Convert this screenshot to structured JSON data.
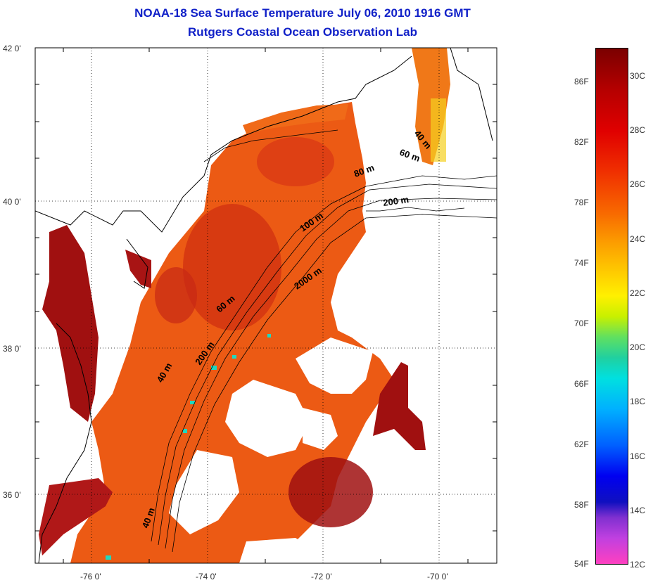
{
  "title": {
    "line1": "NOAA-18 Sea Surface Temperature July 06, 2010 1916 GMT",
    "line2": "Rutgers Coastal Ocean Observation Lab"
  },
  "axes": {
    "lat_labels": [
      "42 0'",
      "40 0'",
      "38 0'",
      "36 0'"
    ],
    "lon_labels": [
      "-76 0'",
      "-74 0'",
      "-72 0'",
      "-70 0'"
    ]
  },
  "isobath_labels": [
    "40 m",
    "60 m",
    "80 m",
    "200 m",
    "100 m",
    "2000 m",
    "60 m",
    "200 m",
    "40 m",
    "40 m"
  ],
  "colorbar": {
    "fahrenheit": [
      "86F",
      "82F",
      "78F",
      "74F",
      "70F",
      "66F",
      "62F",
      "58F",
      "54F"
    ],
    "celsius": [
      "30C",
      "28C",
      "26C",
      "24C",
      "22C",
      "20C",
      "18C",
      "16C",
      "14C",
      "12C"
    ]
  },
  "colors": {
    "title": "#1020c8",
    "warm": "#e8501a",
    "hot": "#a01010",
    "land": "#ffffff"
  }
}
